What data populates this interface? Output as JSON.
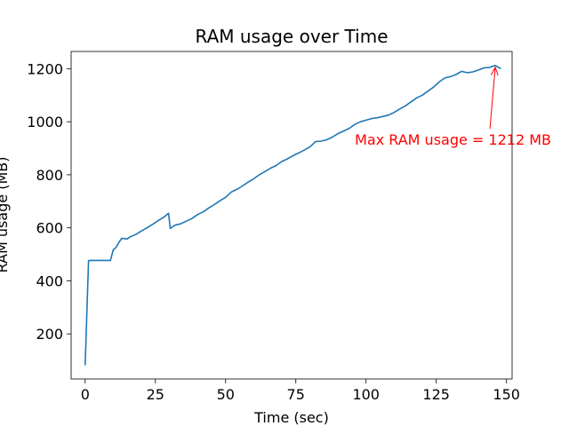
{
  "chart_data": {
    "type": "line",
    "title": "RAM usage over Time",
    "xlabel": "Time (sec)",
    "ylabel": "RAM usage (MB)",
    "xlim": [
      -5,
      152
    ],
    "ylim": [
      30,
      1265
    ],
    "xticks": [
      0,
      25,
      50,
      75,
      100,
      125,
      150
    ],
    "yticks": [
      200,
      400,
      600,
      800,
      1000,
      1200
    ],
    "grid": false,
    "series": [
      {
        "color": "#1f77b4",
        "x": [
          0,
          1.2,
          2,
          4,
          6,
          8,
          9,
          10,
          11,
          12,
          13,
          15,
          16,
          18,
          20,
          22,
          24,
          26,
          28,
          29.7,
          30.3,
          32,
          34,
          36,
          38,
          40,
          42,
          44,
          46,
          48,
          50,
          52,
          54,
          56,
          58,
          60,
          62,
          64,
          66,
          68,
          70,
          72,
          74,
          76,
          78,
          80,
          82,
          84,
          86,
          88,
          90,
          92,
          94,
          96,
          98,
          100,
          102,
          104,
          106,
          108,
          110,
          112,
          114,
          116,
          118,
          120,
          122,
          124,
          126,
          128,
          130,
          132,
          134,
          136,
          138,
          140,
          142,
          144,
          146,
          148
        ],
        "values": [
          82,
          476,
          477,
          477,
          477,
          477,
          477,
          517,
          526,
          545,
          560,
          558,
          566,
          575,
          588,
          600,
          613,
          627,
          640,
          655,
          598,
          610,
          615,
          625,
          635,
          650,
          660,
          675,
          688,
          702,
          715,
          735,
          745,
          758,
          772,
          785,
          800,
          812,
          825,
          835,
          850,
          860,
          872,
          882,
          893,
          905,
          925,
          927,
          932,
          942,
          955,
          965,
          975,
          990,
          1000,
          1006,
          1012,
          1015,
          1020,
          1025,
          1035,
          1048,
          1060,
          1075,
          1090,
          1100,
          1115,
          1130,
          1150,
          1165,
          1170,
          1178,
          1190,
          1185,
          1188,
          1195,
          1203,
          1205,
          1212,
          1200
        ]
      }
    ],
    "annotations": [
      {
        "text": "Max RAM usage = 1212 MB",
        "color": "#ff0000",
        "point": [
          146,
          1212
        ],
        "text_anchor": [
          96,
          913
        ]
      }
    ]
  }
}
